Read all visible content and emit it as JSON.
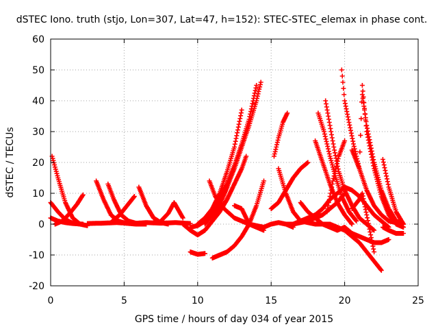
{
  "chart_data": {
    "type": "scatter",
    "title": "dSTEC Iono. truth (stjo, Lon=307, Lat=47, h=152): STEC-STEC_elemax in phase cont.",
    "xlabel": "GPS time / hours of day 034 of year 2015",
    "ylabel": "dSTEC  / TECUs",
    "xlim": [
      0,
      25
    ],
    "ylim": [
      -20,
      60
    ],
    "x_ticks": [
      "0",
      "5",
      "10",
      "15",
      "20",
      "25"
    ],
    "y_ticks": [
      "-20",
      "-10",
      "0",
      "10",
      "20",
      "30",
      "40",
      "50",
      "60"
    ],
    "grid": true,
    "marker": "+",
    "color": "#ff0000",
    "series": [
      {
        "x": [
          0.1,
          0.5,
          1.0,
          1.5,
          2.0,
          2.5
        ],
        "y": [
          22,
          15,
          7,
          2,
          0,
          -0.5
        ]
      },
      {
        "x": [
          0.0,
          0.5,
          1.0,
          1.5,
          2.0
        ],
        "y": [
          7,
          4,
          1.5,
          0.3,
          0
        ]
      },
      {
        "x": [
          0.0,
          0.5,
          1.0,
          1.5,
          2.2
        ],
        "y": [
          2,
          1,
          0.5,
          0.2,
          0
        ]
      },
      {
        "x": [
          0.3,
          0.8,
          1.3,
          1.8,
          2.2
        ],
        "y": [
          0,
          1,
          3.5,
          6.5,
          9.5
        ]
      },
      {
        "x": [
          3.1,
          3.6,
          4.1,
          4.6,
          5.1,
          5.8,
          6.5
        ],
        "y": [
          14,
          8,
          3,
          1,
          0.3,
          0,
          0
        ]
      },
      {
        "x": [
          3.9,
          4.3,
          4.8,
          5.3,
          5.8
        ],
        "y": [
          13,
          8,
          3,
          1,
          0.3
        ]
      },
      {
        "x": [
          4.2,
          4.7,
          5.2,
          5.7
        ],
        "y": [
          1,
          3,
          6,
          9
        ]
      },
      {
        "x": [
          6.0,
          6.5,
          7.0,
          7.5,
          8.0
        ],
        "y": [
          12,
          6,
          2,
          0.5,
          0
        ]
      },
      {
        "x": [
          7.5,
          8.0,
          8.4,
          9.0
        ],
        "y": [
          1,
          3.5,
          7,
          2
        ]
      },
      {
        "x": [
          2.5,
          3.5,
          4.5,
          5.5,
          6.5,
          7.5,
          8.5,
          9.5
        ],
        "y": [
          0.2,
          0.3,
          0.5,
          0.2,
          0.5,
          0.3,
          0.5,
          0.2
        ]
      },
      {
        "x": [
          9.0,
          9.5,
          10.0,
          10.5,
          11.0,
          11.5,
          12.0
        ],
        "y": [
          0,
          -2,
          -3.5,
          -2,
          1,
          6,
          12
        ]
      },
      {
        "x": [
          9.5,
          10.0,
          10.5,
          11.0,
          11.5,
          12.0,
          12.5,
          13.0
        ],
        "y": [
          -1,
          -0.5,
          1,
          5,
          10,
          17,
          25,
          37
        ]
      },
      {
        "x": [
          10.0,
          10.5,
          11.0,
          11.5,
          12.0,
          12.5,
          13.0,
          13.5,
          14.0
        ],
        "y": [
          0,
          2,
          5,
          9,
          13,
          19,
          26,
          34,
          45
        ]
      },
      {
        "x": [
          10.5,
          11.0,
          11.5,
          12.0,
          12.5,
          13.0,
          13.5,
          14.0,
          14.3
        ],
        "y": [
          0,
          3,
          7,
          12,
          18,
          25,
          32,
          40,
          46
        ]
      },
      {
        "x": [
          11.0,
          11.5,
          12.0,
          12.5,
          13.0,
          13.3
        ],
        "y": [
          1,
          4,
          8,
          13,
          18,
          22
        ]
      },
      {
        "x": [
          9.5,
          10.0,
          10.5
        ],
        "y": [
          -9,
          -9.8,
          -9.5
        ]
      },
      {
        "x": [
          10.8,
          11.2,
          11.8,
          12.5,
          13.5,
          14.5
        ],
        "y": [
          14,
          9,
          5,
          2,
          0,
          -1
        ]
      },
      {
        "x": [
          11.0,
          11.5,
          12.0,
          12.5,
          13.0,
          13.5,
          14.0,
          14.5
        ],
        "y": [
          -11,
          -10,
          -9,
          -7,
          -4,
          0,
          6,
          14
        ]
      },
      {
        "x": [
          12.5,
          13.0,
          13.5,
          14.0,
          14.5
        ],
        "y": [
          6,
          5,
          0,
          -1,
          -2
        ]
      },
      {
        "x": [
          14.5,
          15.0,
          15.5,
          16.0,
          16.5
        ],
        "y": [
          -1,
          0,
          0.5,
          0,
          -1
        ]
      },
      {
        "x": [
          15.2,
          15.5,
          15.8,
          16.1
        ],
        "y": [
          22,
          28,
          33,
          36
        ]
      },
      {
        "x": [
          15.0,
          15.5,
          16.0,
          16.5,
          17.0,
          17.5
        ],
        "y": [
          5,
          7,
          11,
          15,
          18,
          20
        ]
      },
      {
        "x": [
          15.5,
          16.0,
          16.5,
          17.0,
          18.0,
          19.0
        ],
        "y": [
          18,
          10,
          4,
          1,
          0,
          0
        ]
      },
      {
        "x": [
          16.0,
          16.5,
          17.0,
          17.5,
          18.0,
          18.5,
          19.0,
          19.5,
          20.0
        ],
        "y": [
          0,
          0,
          0.5,
          1,
          2,
          3,
          5,
          7,
          10
        ]
      },
      {
        "x": [
          16.5,
          17.0,
          17.5,
          18.0,
          18.5,
          19.0,
          19.5,
          20.0,
          20.5,
          21.0,
          21.5,
          22.0,
          22.5,
          23.0
        ],
        "y": [
          0,
          1,
          2,
          3,
          5,
          8,
          10,
          12,
          11,
          9,
          6,
          3,
          1,
          -1
        ]
      },
      {
        "x": [
          17.0,
          17.5,
          18.0,
          18.5,
          19.0,
          19.5,
          20.0
        ],
        "y": [
          7,
          4,
          2,
          0,
          -1,
          -2,
          -1
        ]
      },
      {
        "x": [
          18.0,
          18.5,
          19.0,
          19.5,
          20.0,
          20.5
        ],
        "y": [
          27,
          20,
          13,
          7,
          3,
          0
        ]
      },
      {
        "x": [
          18.2,
          18.6,
          19.0,
          19.4,
          19.8,
          20.3,
          20.8
        ],
        "y": [
          36,
          30,
          22,
          15,
          9,
          4,
          1
        ]
      },
      {
        "x": [
          18.7,
          19.0,
          19.3,
          19.6,
          20.0,
          20.5,
          21.0,
          21.5,
          22.0
        ],
        "y": [
          40,
          32,
          24,
          17,
          11,
          6,
          2,
          0,
          -2
        ]
      },
      {
        "x": [
          18.8,
          19.2,
          19.6,
          20.0
        ],
        "y": [
          4,
          14,
          22,
          27
        ]
      },
      {
        "x": [
          19.8,
          20.0,
          20.3,
          20.6,
          21.0,
          21.5,
          22.0,
          22.5,
          23.0,
          23.5,
          24.0
        ],
        "y": [
          50,
          40,
          33,
          26,
          18,
          11,
          6,
          3,
          1,
          0.5,
          0
        ]
      },
      {
        "x": [
          20.5,
          21.0,
          21.2,
          21.5,
          22.0,
          22.5,
          23.0,
          23.5,
          24.0
        ],
        "y": [
          24,
          18,
          45,
          30,
          18,
          9,
          3,
          0,
          -1
        ]
      },
      {
        "x": [
          21.2,
          21.5,
          22.0,
          22.5,
          23.0,
          23.5,
          24.0
        ],
        "y": [
          42,
          32,
          20,
          11,
          5,
          1,
          0
        ]
      },
      {
        "x": [
          19.0,
          19.5,
          20.0,
          20.5,
          21.0,
          21.5,
          22.0,
          22.5
        ],
        "y": [
          0,
          -1,
          -2,
          -4,
          -6,
          -9,
          -12,
          -15
        ]
      },
      {
        "x": [
          20.0,
          20.5,
          21.0,
          21.5,
          22.0,
          22.5,
          23.0
        ],
        "y": [
          -1,
          -3,
          -4,
          -5,
          -6,
          -6,
          -5
        ]
      },
      {
        "x": [
          20.5,
          21.0,
          21.2,
          21.5,
          22.0
        ],
        "y": [
          5,
          8,
          10,
          3,
          -9
        ]
      },
      {
        "x": [
          22.6,
          23.0,
          23.5,
          24.0
        ],
        "y": [
          21,
          12,
          4,
          0
        ]
      },
      {
        "x": [
          22.6,
          23.0,
          23.5,
          24.0
        ],
        "y": [
          -1,
          -2,
          -3,
          -3
        ]
      }
    ]
  }
}
